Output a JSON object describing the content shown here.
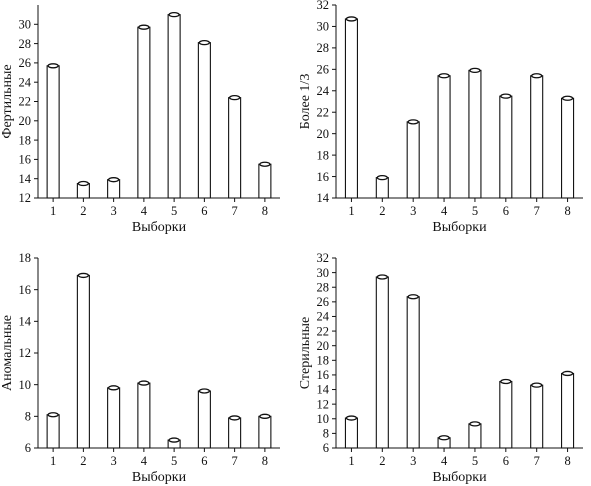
{
  "chart_data": [
    {
      "type": "bar",
      "xlabel": "Выборки",
      "ylabel": "Фертильные",
      "categories": [
        "1",
        "2",
        "3",
        "4",
        "5",
        "6",
        "7",
        "8"
      ],
      "values": [
        25.7,
        13.5,
        13.9,
        29.7,
        31.0,
        28.1,
        22.4,
        15.5
      ],
      "ylim": [
        12,
        32
      ],
      "yticks": [
        12,
        14,
        16,
        18,
        20,
        22,
        24,
        26,
        28,
        30
      ],
      "grid": false
    },
    {
      "type": "bar",
      "xlabel": "Выборки",
      "ylabel": "Более 1/3",
      "categories": [
        "1",
        "2",
        "3",
        "4",
        "5",
        "6",
        "7",
        "8"
      ],
      "values": [
        30.7,
        15.9,
        21.1,
        25.4,
        25.9,
        23.5,
        25.4,
        23.3
      ],
      "ylim": [
        14,
        32
      ],
      "yticks": [
        14,
        16,
        18,
        20,
        22,
        24,
        26,
        28,
        30,
        32
      ],
      "grid": false
    },
    {
      "type": "bar",
      "xlabel": "Выборки",
      "ylabel": "Аномальные",
      "categories": [
        "1",
        "2",
        "3",
        "4",
        "5",
        "6",
        "7",
        "8"
      ],
      "values": [
        8.1,
        16.9,
        9.8,
        10.1,
        6.5,
        9.6,
        7.9,
        8.0
      ],
      "ylim": [
        6,
        18
      ],
      "yticks": [
        6,
        8,
        10,
        12,
        14,
        16,
        18
      ],
      "grid": false
    },
    {
      "type": "bar",
      "xlabel": "Выборки",
      "ylabel": "Стерильные",
      "categories": [
        "1",
        "2",
        "3",
        "4",
        "5",
        "6",
        "7",
        "8"
      ],
      "values": [
        10.1,
        29.4,
        26.7,
        7.4,
        9.3,
        15.1,
        14.6,
        16.2
      ],
      "ylim": [
        6,
        32
      ],
      "yticks": [
        6,
        8,
        10,
        12,
        14,
        16,
        18,
        20,
        22,
        24,
        26,
        28,
        30,
        32
      ],
      "grid": false
    }
  ]
}
